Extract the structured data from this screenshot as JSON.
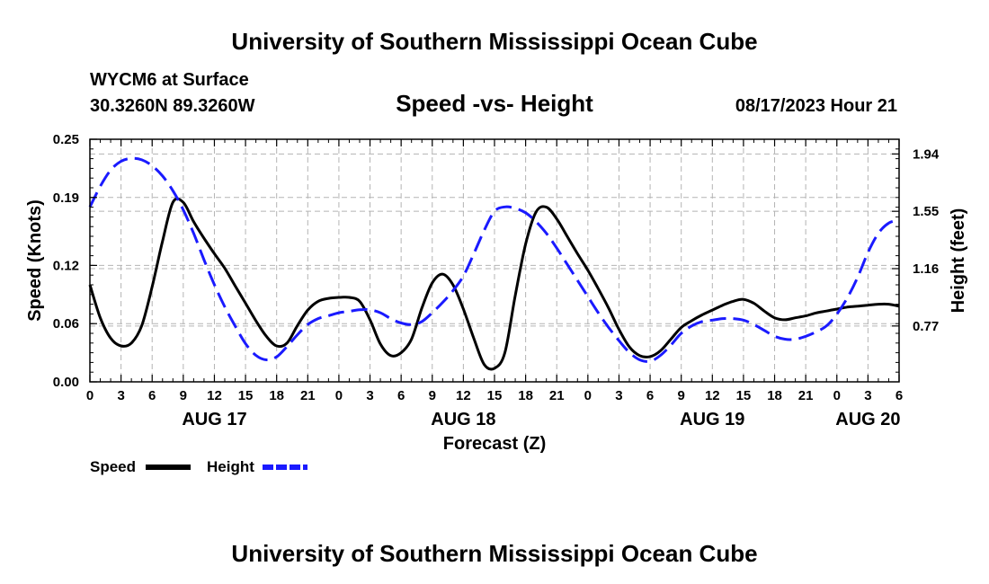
{
  "header": {
    "title": "University of Southern Mississippi Ocean Cube",
    "station": "WYCM6 at Surface",
    "coords": "30.3260N  89.3260W",
    "chart_title": "Speed -vs- Height",
    "datetime": "08/17/2023 Hour 21"
  },
  "footer": {
    "title": "University of Southern Mississippi Ocean Cube"
  },
  "legend": {
    "speed": "Speed",
    "height": "Height"
  },
  "colors": {
    "speed": "#000000",
    "height": "#1a1aff",
    "grid": "#b4b4b4"
  },
  "chart_data": {
    "type": "line",
    "title": "Speed -vs- Height",
    "xlabel": "Forecast (Z)",
    "ylabel": "Speed (Knots)",
    "y2label": "Height (feet)",
    "x_unit": "hours since 08/17 00Z",
    "xlim": [
      0,
      78
    ],
    "ylim": [
      0,
      0.25
    ],
    "y2lim": [
      0.39,
      2.04
    ],
    "y_ticks": [
      "0.00",
      "0.06",
      "0.12",
      "0.19",
      "0.25"
    ],
    "y2_ticks": [
      "0.77",
      "1.16",
      "1.55",
      "1.94"
    ],
    "x_tick_labels": [
      "0",
      "3",
      "6",
      "9",
      "12",
      "15",
      "18",
      "21",
      "0",
      "3",
      "6",
      "9",
      "12",
      "15",
      "18",
      "21",
      "0",
      "3",
      "6",
      "9",
      "12",
      "15",
      "18",
      "21",
      "0",
      "3",
      "6"
    ],
    "date_labels": [
      {
        "label": "AUG 17",
        "at": 12
      },
      {
        "label": "AUG 18",
        "at": 36
      },
      {
        "label": "AUG 19",
        "at": 60
      },
      {
        "label": "AUG 20",
        "at": 75
      }
    ],
    "series": [
      {
        "name": "Speed",
        "axis": "left",
        "style": "solid",
        "x": [
          0,
          1,
          2,
          3,
          4,
          5,
          6,
          7,
          8,
          9,
          10,
          11,
          12,
          13,
          14,
          15,
          16,
          17,
          18,
          19,
          20,
          21,
          22,
          23,
          24,
          25,
          26,
          27,
          28,
          29,
          30,
          31,
          32,
          33,
          34,
          35,
          36,
          37,
          38,
          39,
          40,
          41,
          42,
          43,
          44,
          45,
          46,
          47,
          48,
          49,
          50,
          51,
          52,
          53,
          54,
          55,
          56,
          57,
          58,
          59,
          60,
          61,
          62,
          63,
          64,
          65,
          66,
          67,
          68,
          69,
          70,
          71,
          72,
          73,
          74,
          75,
          76,
          77,
          78
        ],
        "values": [
          0.1,
          0.066,
          0.045,
          0.037,
          0.04,
          0.058,
          0.098,
          0.145,
          0.185,
          0.185,
          0.165,
          0.148,
          0.132,
          0.117,
          0.099,
          0.081,
          0.063,
          0.047,
          0.037,
          0.04,
          0.058,
          0.074,
          0.083,
          0.086,
          0.087,
          0.087,
          0.083,
          0.064,
          0.039,
          0.027,
          0.03,
          0.044,
          0.076,
          0.102,
          0.111,
          0.1,
          0.075,
          0.045,
          0.018,
          0.014,
          0.03,
          0.089,
          0.142,
          0.175,
          0.18,
          0.168,
          0.15,
          0.132,
          0.115,
          0.096,
          0.076,
          0.054,
          0.036,
          0.027,
          0.026,
          0.032,
          0.044,
          0.056,
          0.063,
          0.069,
          0.074,
          0.079,
          0.083,
          0.085,
          0.081,
          0.073,
          0.066,
          0.064,
          0.066,
          0.068,
          0.071,
          0.073,
          0.075,
          0.077,
          0.078,
          0.079,
          0.08,
          0.08,
          0.078
        ]
      },
      {
        "name": "Height",
        "axis": "right",
        "style": "dashed",
        "x": [
          0,
          1,
          2,
          3,
          4,
          5,
          6,
          7,
          8,
          9,
          10,
          11,
          12,
          13,
          14,
          15,
          16,
          17,
          18,
          19,
          20,
          21,
          22,
          23,
          24,
          25,
          26,
          27,
          28,
          29,
          30,
          31,
          32,
          33,
          34,
          35,
          36,
          37,
          38,
          39,
          40,
          41,
          42,
          43,
          44,
          45,
          46,
          47,
          48,
          49,
          50,
          51,
          52,
          53,
          54,
          55,
          56,
          57,
          58,
          59,
          60,
          61,
          62,
          63,
          64,
          65,
          66,
          67,
          68,
          69,
          70,
          71,
          72,
          73,
          74,
          75,
          76,
          77,
          78
        ],
        "values": [
          1.58,
          1.72,
          1.83,
          1.89,
          1.91,
          1.9,
          1.86,
          1.79,
          1.69,
          1.56,
          1.4,
          1.22,
          1.05,
          0.9,
          0.77,
          0.65,
          0.57,
          0.54,
          0.56,
          0.63,
          0.71,
          0.78,
          0.82,
          0.84,
          0.86,
          0.87,
          0.88,
          0.88,
          0.86,
          0.82,
          0.79,
          0.78,
          0.8,
          0.86,
          0.93,
          1.01,
          1.11,
          1.26,
          1.42,
          1.55,
          1.58,
          1.57,
          1.54,
          1.48,
          1.4,
          1.3,
          1.19,
          1.08,
          0.97,
          0.86,
          0.76,
          0.67,
          0.59,
          0.54,
          0.53,
          0.57,
          0.64,
          0.72,
          0.77,
          0.8,
          0.81,
          0.82,
          0.82,
          0.81,
          0.78,
          0.74,
          0.7,
          0.68,
          0.68,
          0.7,
          0.73,
          0.77,
          0.85,
          0.96,
          1.1,
          1.27,
          1.4,
          1.47,
          1.49
        ]
      }
    ]
  }
}
